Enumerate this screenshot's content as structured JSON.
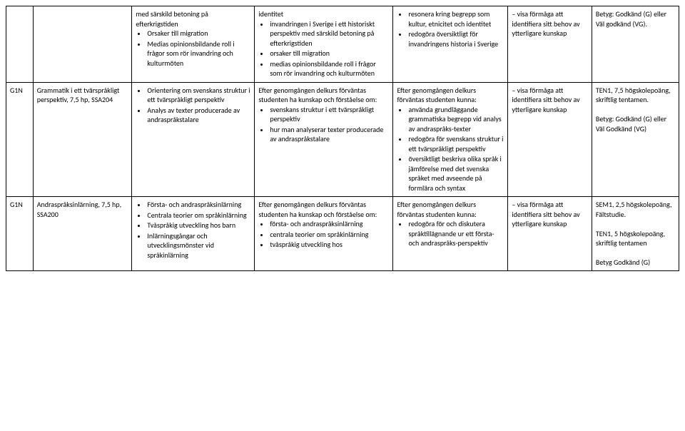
{
  "rows": [
    {
      "c0": "",
      "c1": "",
      "c2_pre": "med särskild betoning på efterkrigstiden",
      "c2_items": [
        "Orsaker till migration",
        "Medias opinionsbildande roll i frågor som rör invandring och kulturmöten"
      ],
      "c3_pre": "identitet",
      "c3_items": [
        "invandringen i Sverige i ett historiskt perspektiv med särskild betoning på efterkrigstiden",
        "orsaker till migration",
        "medias opinionsbildande roll i frågor som rör invandring och kulturmöten"
      ],
      "c4_pre": null,
      "c4_items": [
        "resonera kring begrepp som kultur, etnicitet och identitet",
        "redogöra översiktligt för invandringens historia i Sverige"
      ],
      "c5": "– visa förmåga att identifiera sitt behov av ytterligare kunskap",
      "c6": "Betyg: Godkänd (G) eller Väl godkänd (VG)."
    },
    {
      "c0": "G1N",
      "c1": "Grammatik i ett tvärspråkligt perspektiv, 7,5 hp, SSA204",
      "c2_pre": null,
      "c2_items": [
        "Orientering om svenskans struktur i ett tvärspråkligt perspektiv",
        "Analys av texter producerade av andraspråkstalare"
      ],
      "c3_pre": "Efter genomgången delkurs förväntas studenten ha kunskap och förståelse om:",
      "c3_items": [
        "svenskans struktur i ett tvärspråkligt perspektiv",
        "hur man analyserar texter producerade av andraspråkstalare"
      ],
      "c4_pre": "Efter genomgången delkurs förväntas studenten kunna:",
      "c4_items": [
        "använda grundläggande grammatiska begrepp vid analys av andraspråks-texter",
        "redogöra för svenskans struktur i ett tvärspråkligt perspektiv",
        "översiktligt beskriva olika språk i jämförelse med det svenska språket med avseende på formlära och syntax"
      ],
      "c5": "– visa förmåga att identifiera sitt behov av ytterligare kunskap",
      "c6": "TEN1, 7,5 högskolepoäng, skriftlig tentamen.\n\nBetyg: Godkänd (G) eller Väl Godkänd (VG)"
    },
    {
      "c0": "G1N",
      "c1": "Andraspråksinlärning, 7,5 hp, SSA200",
      "c2_pre": null,
      "c2_items": [
        "Första- och andraspråksinlärning",
        "Centrala teorier om språkinlärning",
        "Tvåspråkig utveckling hos barn",
        "Inlärningsgångar och utvecklingsmönster vid språkinlärning"
      ],
      "c3_pre": "Efter genomgången delkurs förväntas studenten ha kunskap och förståelse om:",
      "c3_items": [
        "första- och andraspråksinlärning",
        "centrala teorier om språkinlärning",
        "tvåspråkig utveckling hos"
      ],
      "c4_pre": "Efter genomgången delkurs förväntas studenten kunna:",
      "c4_items": [
        "redogöra för och diskutera språktillägnande ur ett första- och andraspråks-perspektiv"
      ],
      "c5": "– visa förmåga att identifiera sitt behov av ytterligare kunskap",
      "c6": "SEM1, 2,5 högskolepoäng, Fältstudie.\n\nTEN1, 5 högskolepoäng, skriftlig tentamen\n\nBetyg Godkänd (G)"
    }
  ]
}
